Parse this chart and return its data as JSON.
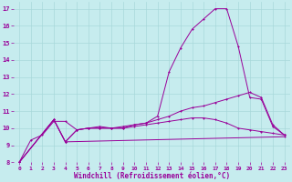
{
  "title": "",
  "xlabel": "Windchill (Refroidissement éolien,°C)",
  "ylabel": "",
  "bg_color": "#c6ecee",
  "grid_color": "#a8d8da",
  "line_color": "#990099",
  "xlim": [
    -0.5,
    23.5
  ],
  "ylim": [
    8,
    17.4
  ],
  "xticks": [
    0,
    1,
    2,
    3,
    4,
    5,
    6,
    7,
    8,
    9,
    10,
    11,
    12,
    13,
    14,
    15,
    16,
    17,
    18,
    19,
    20,
    21,
    22,
    23
  ],
  "yticks": [
    8,
    9,
    10,
    11,
    12,
    13,
    14,
    15,
    16,
    17
  ],
  "line1_x": [
    0,
    1,
    2,
    3,
    4,
    5,
    6,
    7,
    8,
    9,
    10,
    11,
    12,
    13,
    14,
    15,
    16,
    17,
    18,
    19,
    20,
    21,
    22,
    23
  ],
  "line1_y": [
    8.0,
    9.3,
    9.6,
    10.4,
    10.4,
    9.9,
    10.0,
    10.1,
    10.0,
    10.1,
    10.2,
    10.3,
    10.7,
    13.3,
    14.7,
    15.8,
    16.4,
    17.0,
    17.0,
    14.8,
    11.8,
    11.7,
    10.1,
    9.6
  ],
  "line2_x": [
    0,
    3,
    4,
    5,
    6,
    7,
    8,
    9,
    10,
    11,
    12,
    13,
    14,
    15,
    16,
    17,
    18,
    19,
    20,
    21,
    22,
    23
  ],
  "line2_y": [
    8.0,
    10.5,
    9.2,
    9.9,
    10.0,
    10.0,
    10.0,
    10.0,
    10.2,
    10.3,
    10.5,
    10.7,
    11.0,
    11.2,
    11.3,
    11.5,
    11.7,
    11.9,
    12.1,
    11.8,
    10.2,
    9.6
  ],
  "line3_x": [
    0,
    3,
    4,
    23
  ],
  "line3_y": [
    8.0,
    10.5,
    9.2,
    9.5
  ],
  "line4_x": [
    0,
    3,
    4,
    5,
    6,
    7,
    8,
    9,
    10,
    11,
    12,
    13,
    14,
    15,
    16,
    17,
    18,
    19,
    20,
    21,
    22,
    23
  ],
  "line4_y": [
    8.0,
    10.5,
    9.2,
    9.9,
    10.0,
    10.0,
    10.0,
    10.0,
    10.1,
    10.2,
    10.3,
    10.4,
    10.5,
    10.6,
    10.6,
    10.5,
    10.3,
    10.0,
    9.9,
    9.8,
    9.7,
    9.6
  ]
}
